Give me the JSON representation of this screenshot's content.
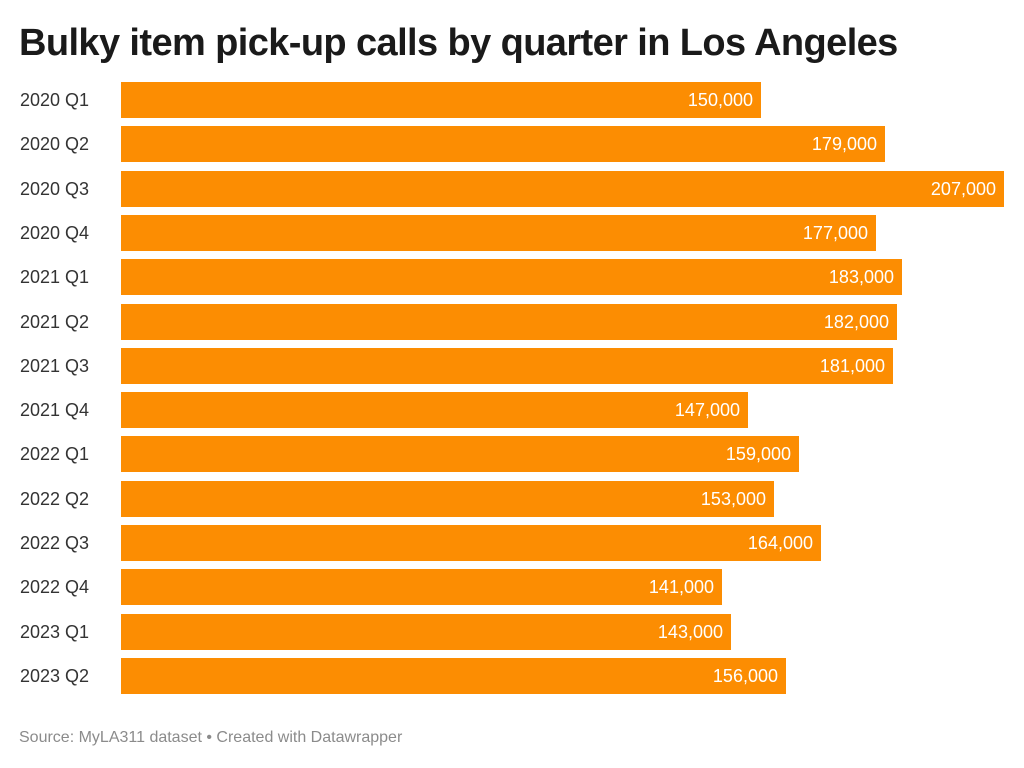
{
  "title": "Bulky item pick-up calls by quarter in Los Angeles",
  "source": "Source: MyLA311 dataset • Created with Datawrapper",
  "colors": {
    "bar": "#fc8d02",
    "value_text": "#ffffff",
    "title_text": "#1a1a1a",
    "footer_text": "#8b8b8b"
  },
  "chart_data": {
    "type": "bar",
    "orientation": "horizontal",
    "title": "Bulky item pick-up calls by quarter in Los Angeles",
    "xlabel": "",
    "ylabel": "",
    "xlim": [
      0,
      207000
    ],
    "grid": false,
    "legend": "none",
    "categories": [
      "2020 Q1",
      "2020 Q2",
      "2020 Q3",
      "2020 Q4",
      "2021 Q1",
      "2021 Q2",
      "2021 Q3",
      "2021 Q4",
      "2022 Q1",
      "2022 Q2",
      "2022 Q3",
      "2022 Q4",
      "2023 Q1",
      "2023 Q2"
    ],
    "values": [
      150000,
      179000,
      207000,
      177000,
      183000,
      182000,
      181000,
      147000,
      159000,
      153000,
      164000,
      141000,
      143000,
      156000
    ],
    "value_labels": [
      "150,000",
      "179,000",
      "207,000",
      "177,000",
      "183,000",
      "182,000",
      "181,000",
      "147,000",
      "159,000",
      "153,000",
      "164,000",
      "141,000",
      "143,000",
      "156,000"
    ]
  }
}
